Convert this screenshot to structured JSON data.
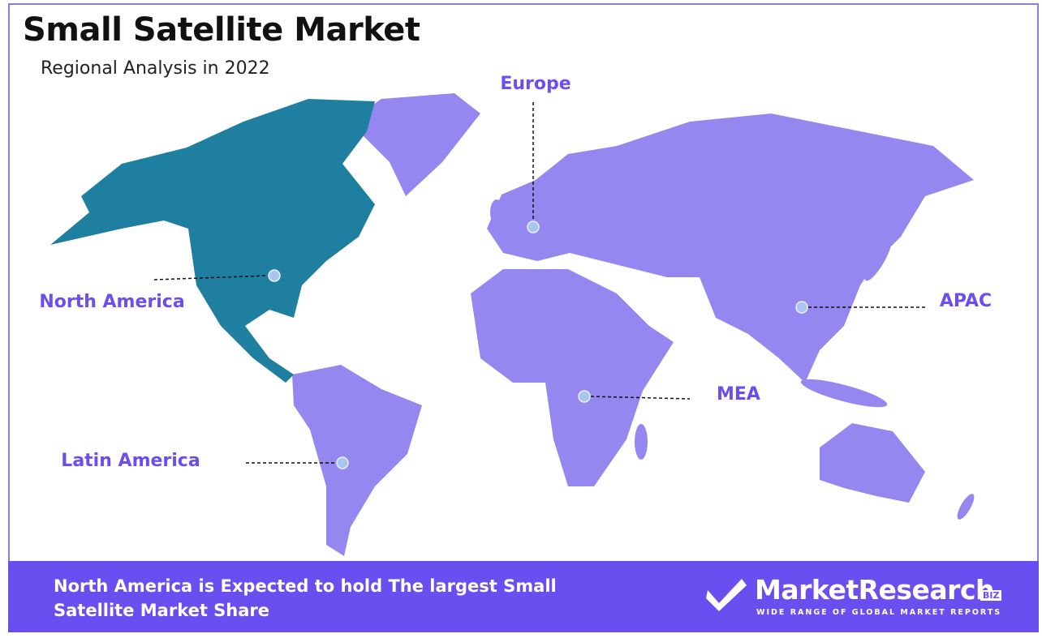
{
  "header": {
    "title": "Small Satellite Market",
    "subtitle": "Regional Analysis in 2022"
  },
  "regions": [
    {
      "label": "North America"
    },
    {
      "label": "Europe"
    },
    {
      "label": "APAC"
    },
    {
      "label": "MEA"
    },
    {
      "label": "Latin America"
    }
  ],
  "footer": {
    "text": "North America is Expected to hold The largest Small Satellite Market Share",
    "logo": {
      "name": "MarketResearch",
      "badge": "BIZ",
      "tagline": "WIDE RANGE OF GLOBAL MARKET REPORTS"
    }
  }
}
